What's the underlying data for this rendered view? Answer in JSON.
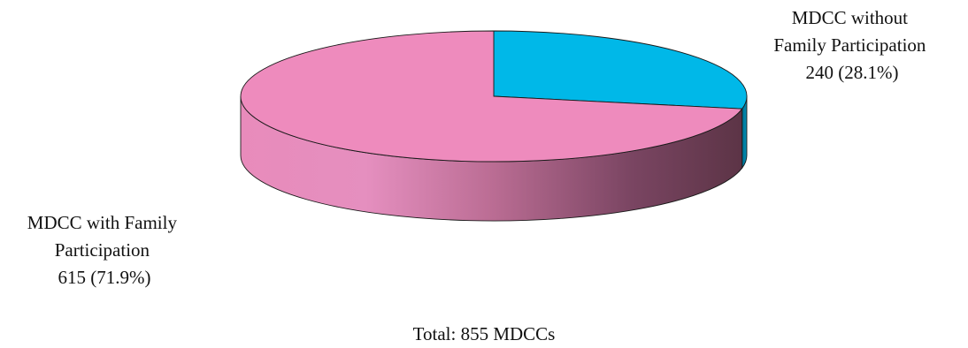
{
  "chart_data": {
    "type": "pie",
    "style": "3d",
    "title": "",
    "slices": [
      {
        "name": "MDCC without Family Participation",
        "value": 240,
        "percent": 28.1,
        "color": "#00b8e8",
        "label_lines": [
          "MDCC without",
          "Family Participation",
          "240 (28.1%)"
        ]
      },
      {
        "name": "MDCC with Family Participation",
        "value": 615,
        "percent": 71.9,
        "color": "#ee8bbd",
        "label_lines": [
          "MDCC with Family",
          "Participation",
          "615 (71.9%)"
        ]
      }
    ],
    "total": 855,
    "footnote": "Total: 855 MDCCs"
  }
}
